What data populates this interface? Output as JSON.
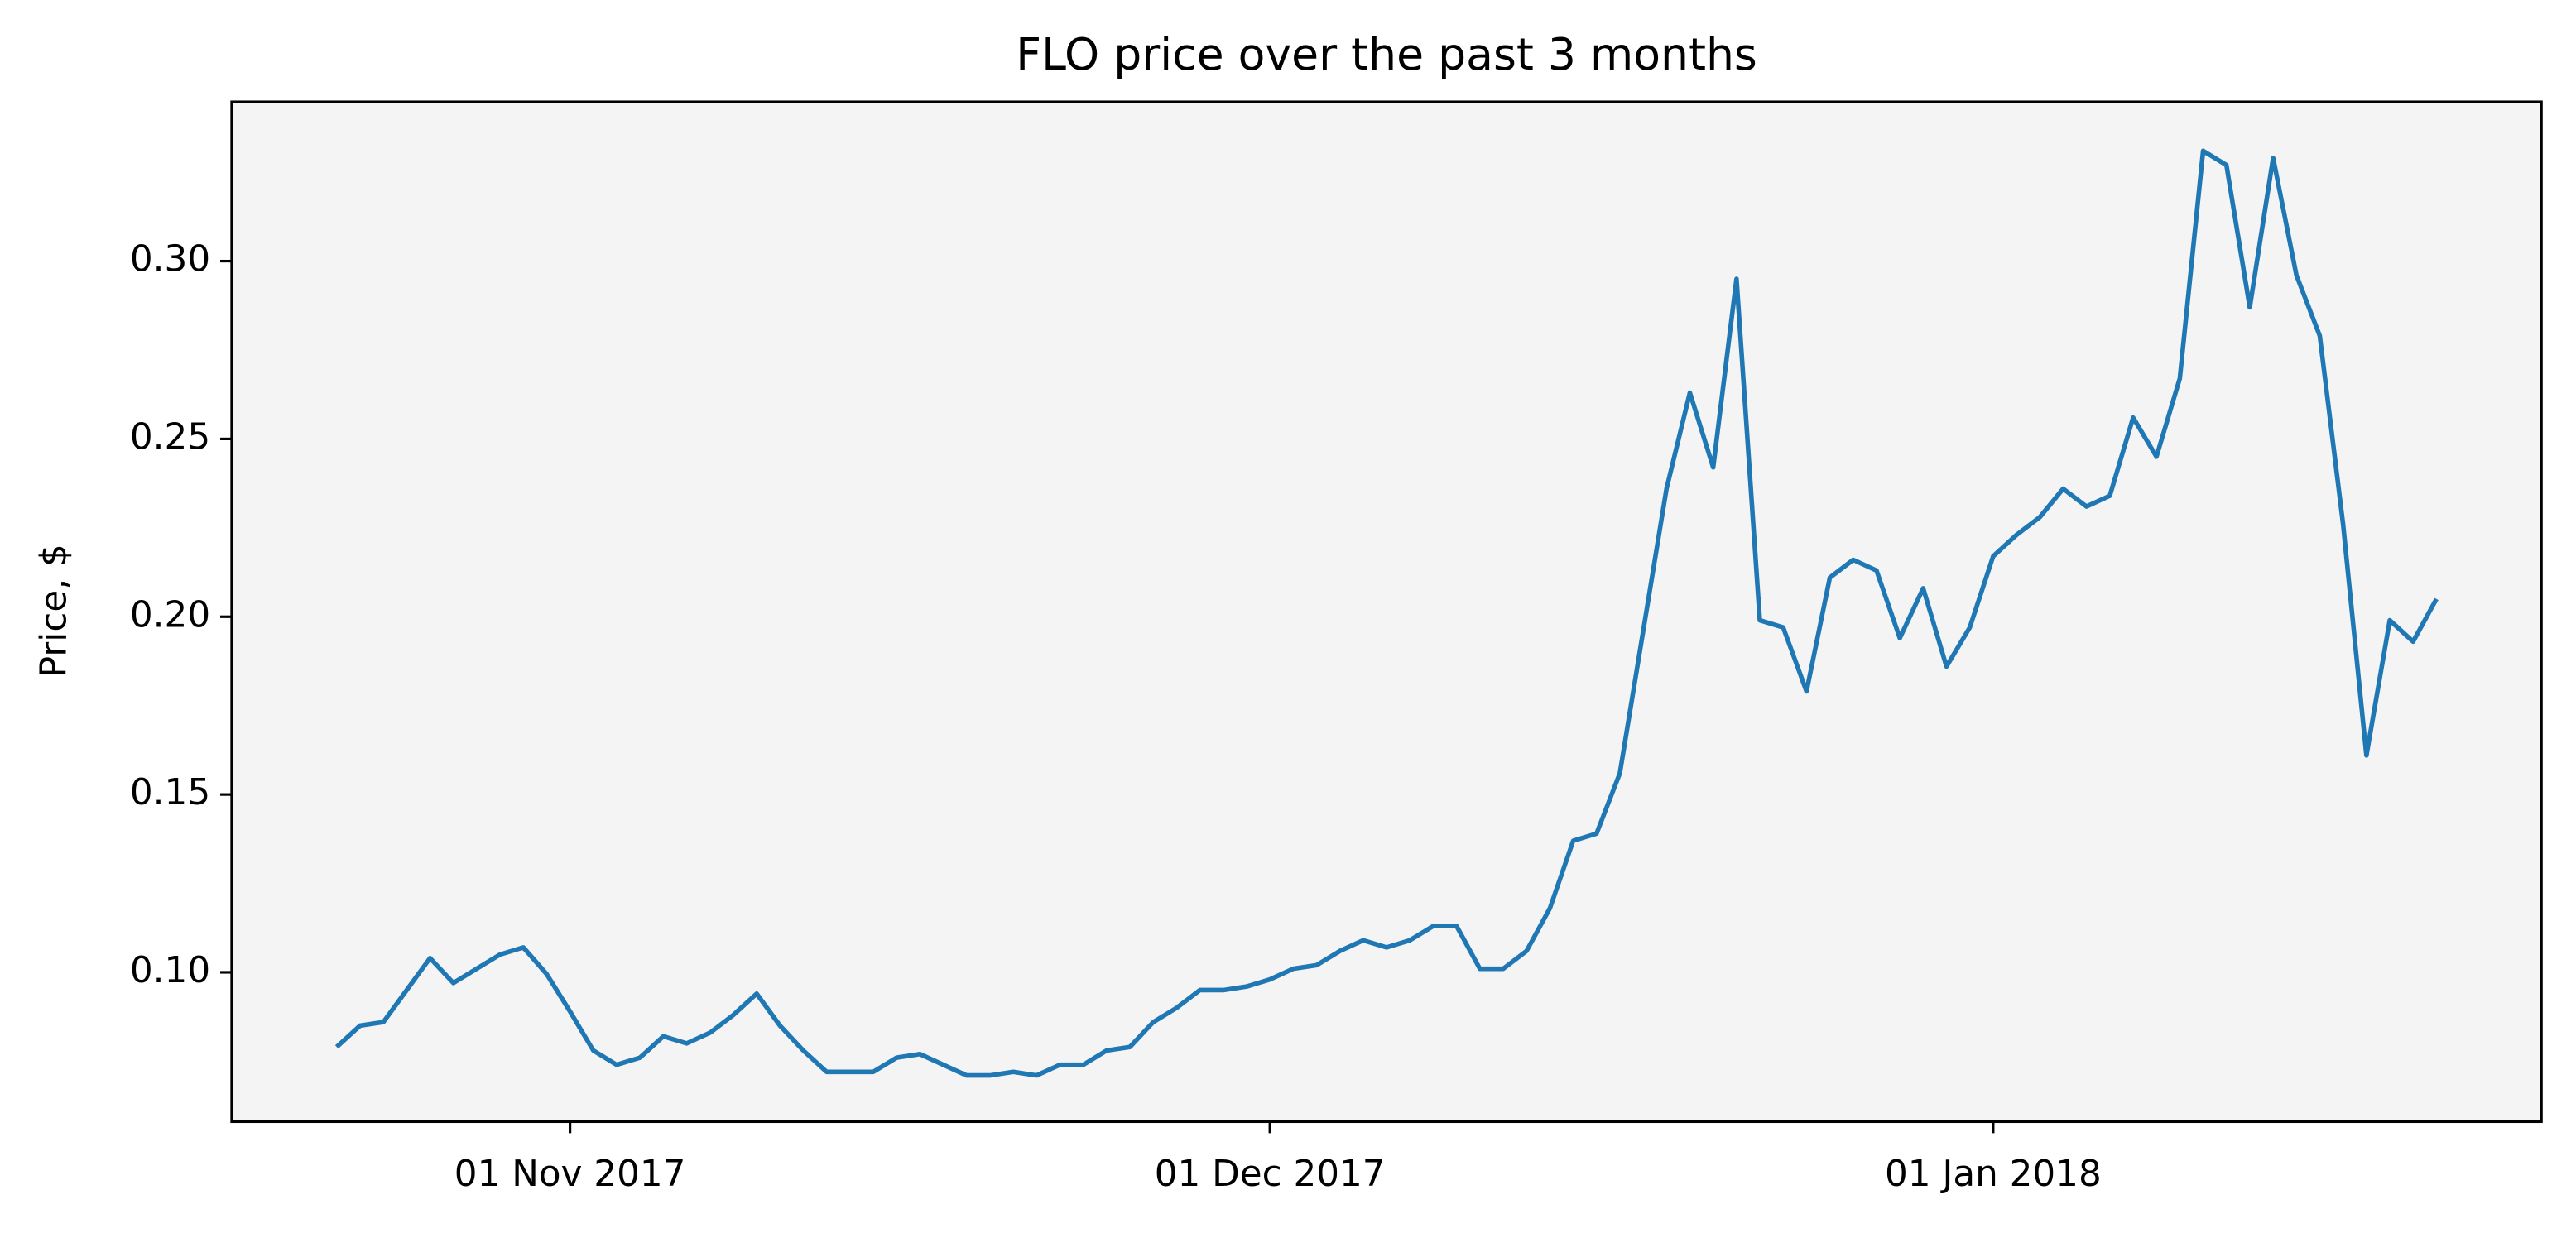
{
  "chart_data": {
    "type": "line",
    "title": "FLO price over the past 3 months",
    "y_label": "Price, $",
    "x": [
      "2017-10-22",
      "2017-10-23",
      "2017-10-24",
      "2017-10-25",
      "2017-10-26",
      "2017-10-27",
      "2017-10-28",
      "2017-10-29",
      "2017-10-30",
      "2017-10-31",
      "2017-11-01",
      "2017-11-02",
      "2017-11-03",
      "2017-11-04",
      "2017-11-05",
      "2017-11-06",
      "2017-11-07",
      "2017-11-08",
      "2017-11-09",
      "2017-11-10",
      "2017-11-11",
      "2017-11-12",
      "2017-11-13",
      "2017-11-14",
      "2017-11-15",
      "2017-11-16",
      "2017-11-17",
      "2017-11-18",
      "2017-11-19",
      "2017-11-20",
      "2017-11-21",
      "2017-11-22",
      "2017-11-23",
      "2017-11-24",
      "2017-11-25",
      "2017-11-26",
      "2017-11-27",
      "2017-11-28",
      "2017-11-29",
      "2017-11-30",
      "2017-12-01",
      "2017-12-02",
      "2017-12-03",
      "2017-12-04",
      "2017-12-05",
      "2017-12-06",
      "2017-12-07",
      "2017-12-08",
      "2017-12-09",
      "2017-12-10",
      "2017-12-11",
      "2017-12-12",
      "2017-12-13",
      "2017-12-14",
      "2017-12-15",
      "2017-12-16",
      "2017-12-17",
      "2017-12-18",
      "2017-12-19",
      "2017-12-20",
      "2017-12-21",
      "2017-12-22",
      "2017-12-23",
      "2017-12-24",
      "2017-12-25",
      "2017-12-26",
      "2017-12-27",
      "2017-12-28",
      "2017-12-29",
      "2017-12-30",
      "2017-12-31",
      "2018-01-01",
      "2018-01-02",
      "2018-01-03",
      "2018-01-04",
      "2018-01-05",
      "2018-01-06",
      "2018-01-07",
      "2018-01-08",
      "2018-01-09",
      "2018-01-10",
      "2018-01-11",
      "2018-01-12",
      "2018-01-13",
      "2018-01-14",
      "2018-01-15",
      "2018-01-16",
      "2018-01-17",
      "2018-01-18",
      "2018-01-19",
      "2018-01-20"
    ],
    "series": [
      {
        "color": "#1f77b4",
        "values": [
          0.079,
          0.085,
          0.086,
          0.095,
          0.104,
          0.097,
          0.101,
          0.105,
          0.107,
          0.0995,
          0.089,
          0.078,
          0.074,
          0.076,
          0.082,
          0.08,
          0.083,
          0.088,
          0.094,
          0.085,
          0.078,
          0.072,
          0.072,
          0.072,
          0.076,
          0.077,
          0.074,
          0.071,
          0.071,
          0.072,
          0.071,
          0.074,
          0.074,
          0.078,
          0.079,
          0.086,
          0.09,
          0.095,
          0.095,
          0.096,
          0.098,
          0.101,
          0.102,
          0.106,
          0.109,
          0.107,
          0.109,
          0.113,
          0.113,
          0.101,
          0.101,
          0.106,
          0.118,
          0.137,
          0.139,
          0.156,
          0.196,
          0.236,
          0.263,
          0.242,
          0.295,
          0.199,
          0.197,
          0.179,
          0.211,
          0.216,
          0.213,
          0.194,
          0.208,
          0.186,
          0.197,
          0.217,
          0.223,
          0.228,
          0.236,
          0.231,
          0.234,
          0.256,
          0.245,
          0.267,
          0.331,
          0.327,
          0.287,
          0.329,
          0.296,
          0.279,
          0.226,
          0.161,
          0.199,
          0.193,
          0.205
        ]
      }
    ],
    "xlim": [
      "2017-10-17T12:00:00Z",
      "2018-01-24T12:00:00Z"
    ],
    "xticks": [
      {
        "value": "2017-11-01",
        "label": "01 Nov 2017"
      },
      {
        "value": "2017-12-01",
        "label": "01 Dec 2017"
      },
      {
        "value": "2018-01-01",
        "label": "01 Jan 2018"
      }
    ],
    "ylim": [
      0.058,
      0.3448
    ],
    "yticks": [
      {
        "value": 0.1,
        "label": "0.10"
      },
      {
        "value": 0.15,
        "label": "0.15"
      },
      {
        "value": 0.2,
        "label": "0.20"
      },
      {
        "value": 0.25,
        "label": "0.25"
      },
      {
        "value": 0.3,
        "label": "0.30"
      }
    ],
    "background": "#f4f4f4"
  }
}
